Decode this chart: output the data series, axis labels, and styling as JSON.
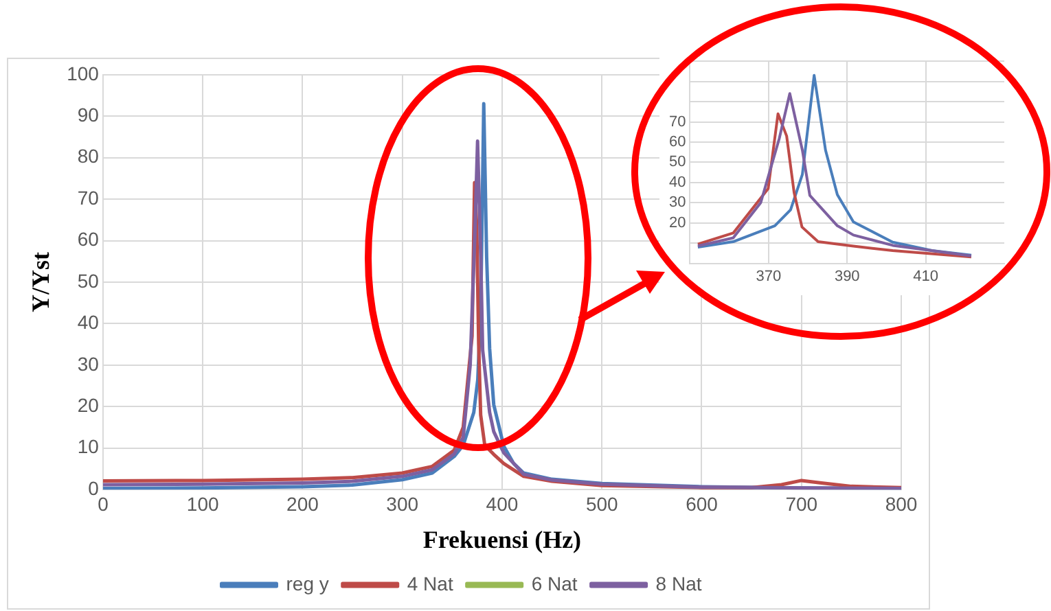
{
  "chart_data": [
    {
      "type": "line",
      "xlabel": "Frekuensi (Hz)",
      "ylabel": "Y/Yst",
      "xlim": [
        0,
        800
      ],
      "xticks": [
        0,
        100,
        200,
        300,
        400,
        500,
        600,
        700,
        800
      ],
      "ylim": [
        0,
        100
      ],
      "yticks": [
        0,
        10,
        20,
        30,
        40,
        50,
        60,
        70,
        80,
        90,
        100
      ],
      "grid": true,
      "legend": "bottom",
      "series": [
        {
          "name": "reg y",
          "color": "#4a7ebb",
          "x": [
            0,
            100,
            200,
            250,
            300,
            330,
            352,
            361,
            371.6,
            375.6,
            378.6,
            381.6,
            384.5,
            387.5,
            391.6,
            401.6,
            411.6,
            421.6,
            450,
            500,
            600,
            700,
            800
          ],
          "values": [
            0.3,
            0.4,
            0.7,
            1.1,
            2.4,
            4,
            8,
            10.7,
            18.6,
            26.5,
            44,
            93,
            56,
            34,
            20.5,
            10.5,
            6.3,
            4,
            2.5,
            1.5,
            0.7,
            0.4,
            0.3
          ]
        },
        {
          "name": "4 Nat",
          "color": "#be4b48",
          "x": [
            0,
            100,
            200,
            250,
            300,
            330,
            352,
            361,
            369.9,
            372.4,
            374.6,
            376.5,
            378.5,
            382.6,
            391.6,
            401.6,
            421.6,
            450,
            500,
            600,
            650,
            680,
            700,
            720,
            750,
            800
          ],
          "values": [
            2.1,
            2.2,
            2.5,
            2.9,
            4,
            5.6,
            9.5,
            15,
            37,
            74,
            63,
            35,
            18,
            10.7,
            8.5,
            6.3,
            3.2,
            2,
            1,
            0.5,
            0.5,
            1.2,
            2.2,
            1.6,
            0.8,
            0.5
          ]
        },
        {
          "name": "6 Nat",
          "color": "#98b954"
        },
        {
          "name": "8 Nat",
          "color": "#7d60a0",
          "x": [
            0,
            100,
            200,
            250,
            300,
            330,
            352,
            361,
            368,
            372.7,
            375.4,
            378.6,
            380.5,
            387.5,
            391.6,
            401.6,
            421.6,
            450,
            500,
            600,
            700,
            800
          ],
          "values": [
            1.2,
            1.3,
            1.6,
            2,
            3.2,
            4.8,
            8.6,
            12.6,
            30,
            61.6,
            84,
            56,
            33.6,
            18.6,
            14,
            8.9,
            3.7,
            2.3,
            1.3,
            0.6,
            0.4,
            0.3
          ]
        }
      ]
    },
    {
      "type": "line",
      "xlim": [
        350,
        430
      ],
      "xticks": [
        370,
        390,
        410
      ],
      "ylim": [
        0,
        100
      ],
      "yticks": [
        {
          "value": 0,
          "label": null
        },
        {
          "value": 10,
          "label": null
        },
        20,
        30,
        40,
        50,
        60,
        70,
        {
          "value": 80,
          "label": null
        },
        {
          "value": 90,
          "label": null
        },
        {
          "value": 100,
          "label": null
        }
      ],
      "grid": true,
      "series": [
        {
          "color": "#4a7ebb",
          "x": [
            352,
            361,
            371.6,
            375.6,
            378.6,
            381.6,
            384.5,
            387.5,
            391.6,
            401.6,
            411.6,
            421.6
          ],
          "values": [
            8,
            10.7,
            18.6,
            26.5,
            44,
            93,
            56,
            34,
            20.5,
            10.5,
            6.3,
            4
          ]
        },
        {
          "color": "#be4b48",
          "x": [
            352,
            361,
            369.9,
            372.4,
            374.6,
            376.5,
            378.5,
            382.6,
            391.6,
            401.6,
            421.6
          ],
          "values": [
            9.5,
            15,
            37,
            74,
            63,
            35,
            18,
            10.7,
            8.5,
            6.3,
            3.2
          ]
        },
        {
          "color": "#98b954"
        },
        {
          "color": "#7d60a0",
          "x": [
            352,
            361,
            368,
            372.7,
            375.4,
            378.6,
            380.5,
            387.5,
            391.6,
            401.6,
            421.6
          ],
          "values": [
            8.6,
            12.6,
            30,
            61.6,
            84,
            56,
            33.6,
            18.6,
            14,
            8.9,
            3.7
          ]
        }
      ]
    }
  ]
}
